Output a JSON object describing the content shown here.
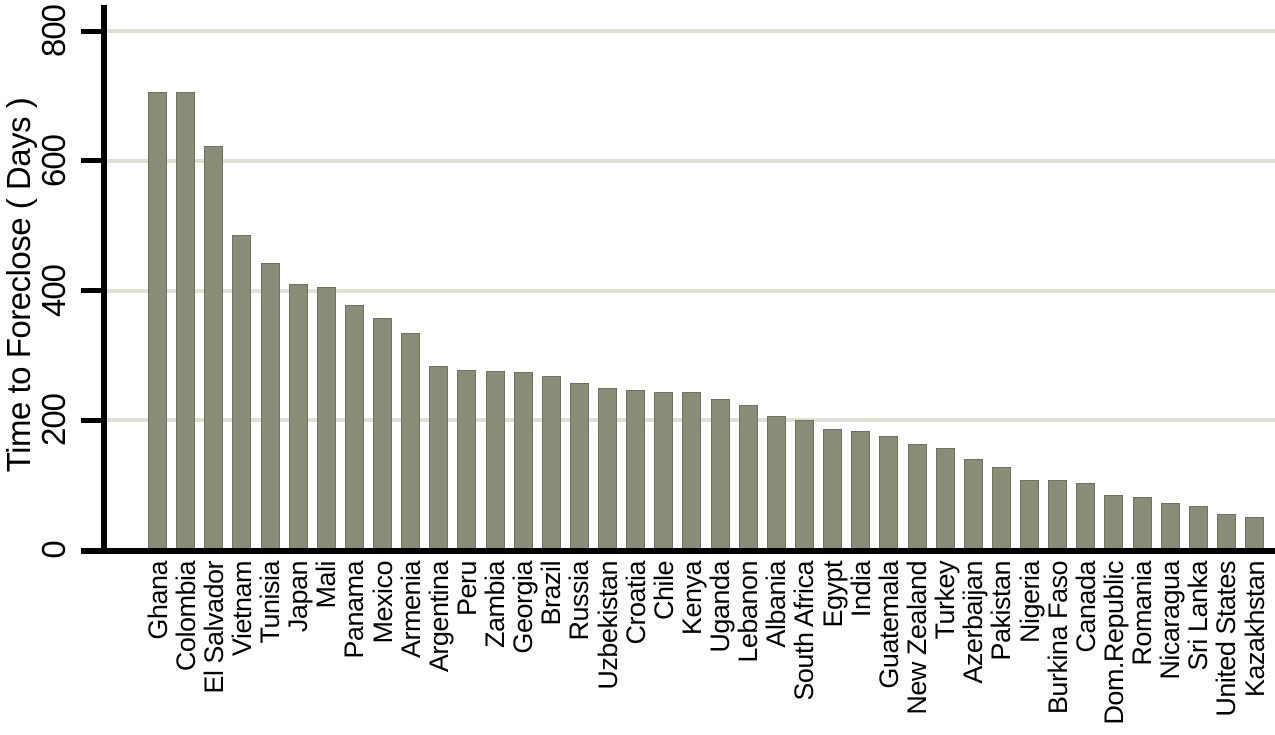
{
  "chart_data": {
    "type": "bar",
    "title": "",
    "xlabel": "",
    "ylabel": "Time to Foreclose ( Days )",
    "ylim": [
      0,
      800
    ],
    "yticks": [
      0,
      200,
      400,
      600,
      800
    ],
    "grid": "horizontal",
    "legend_position": "none",
    "colors": {
      "bar_fill": "#898c77",
      "bar_border": "#6f725d",
      "gridline": "#e0e1d5",
      "axis": "#000000",
      "background": "#ffffff",
      "text": "#000000"
    },
    "categories": [
      "Ghana",
      "Colombia",
      "El Salvador",
      "Vietnam",
      "Tunisia",
      "Japan",
      "Mali",
      "Panama",
      "Mexico",
      "Armenia",
      "Argentina",
      "Peru",
      "Zambia",
      "Georgia",
      "Brazil",
      "Russia",
      "Uzbekistan",
      "Croatia",
      "Chile",
      "Kenya",
      "Uganda",
      "Lebanon",
      "Albania",
      "South Africa",
      "Egypt",
      "India",
      "Guatemala",
      "New Zealand",
      "Turkey",
      "Azerbaijan",
      "Pakistan",
      "Nigeria",
      "Burkina Faso",
      "Canada",
      "Dom.Republic",
      "Romania",
      "Nicaragua",
      "Sri Lanka",
      "United States",
      "Kazakhstan"
    ],
    "values": [
      706,
      706,
      622,
      486,
      443,
      410,
      406,
      378,
      357,
      334,
      283,
      277,
      276,
      275,
      268,
      258,
      250,
      246,
      243,
      243,
      233,
      223,
      206,
      200,
      187,
      183,
      176,
      163,
      157,
      140,
      128,
      108,
      108,
      103,
      85,
      81,
      72,
      68,
      56,
      51
    ]
  }
}
